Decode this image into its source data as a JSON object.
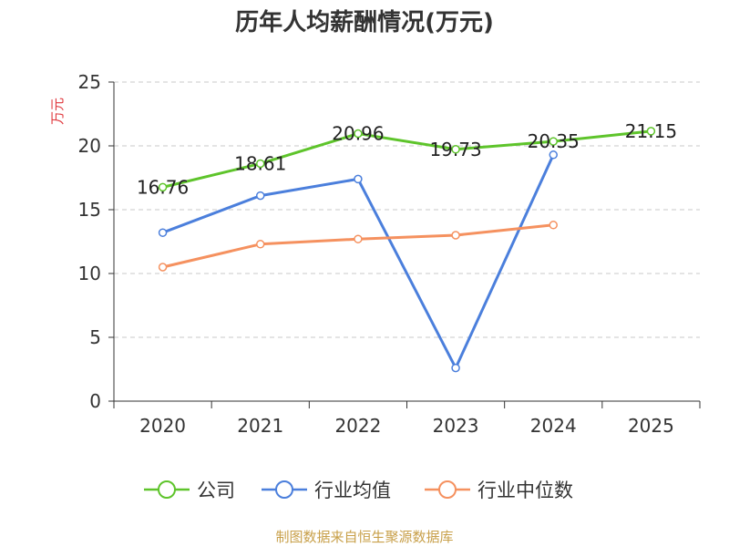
{
  "chart_data": {
    "type": "line",
    "title": "历年人均薪酬情况(万元)",
    "ylabel": "万元",
    "xlabel": "",
    "categories": [
      "2020",
      "2021",
      "2022",
      "2023",
      "2024",
      "2025"
    ],
    "ylim": [
      0,
      25
    ],
    "yticks": [
      0,
      5,
      10,
      15,
      20,
      25
    ],
    "grid": "horizontal dashed",
    "legend_position": "bottom",
    "series": [
      {
        "name": "公司",
        "color": "#5ec42b",
        "values": [
          16.76,
          18.61,
          20.96,
          19.73,
          20.35,
          21.15
        ],
        "labels": [
          "16.76",
          "18.61",
          "20.96",
          "19.73",
          "20.35",
          "21.15"
        ]
      },
      {
        "name": "行业均值",
        "color": "#4b7fdc",
        "values": [
          13.2,
          16.1,
          17.4,
          2.6,
          19.3,
          null
        ],
        "labels": null
      },
      {
        "name": "行业中位数",
        "color": "#f5915f",
        "values": [
          10.5,
          12.3,
          12.7,
          13.0,
          13.8,
          null
        ],
        "labels": null
      }
    ]
  },
  "colors": {
    "ylabel": "#e0393e",
    "footer": "#c8a04a",
    "axis": "#333333",
    "grid": "#c8c8c8"
  },
  "footer": "制图数据来自恒生聚源数据库"
}
